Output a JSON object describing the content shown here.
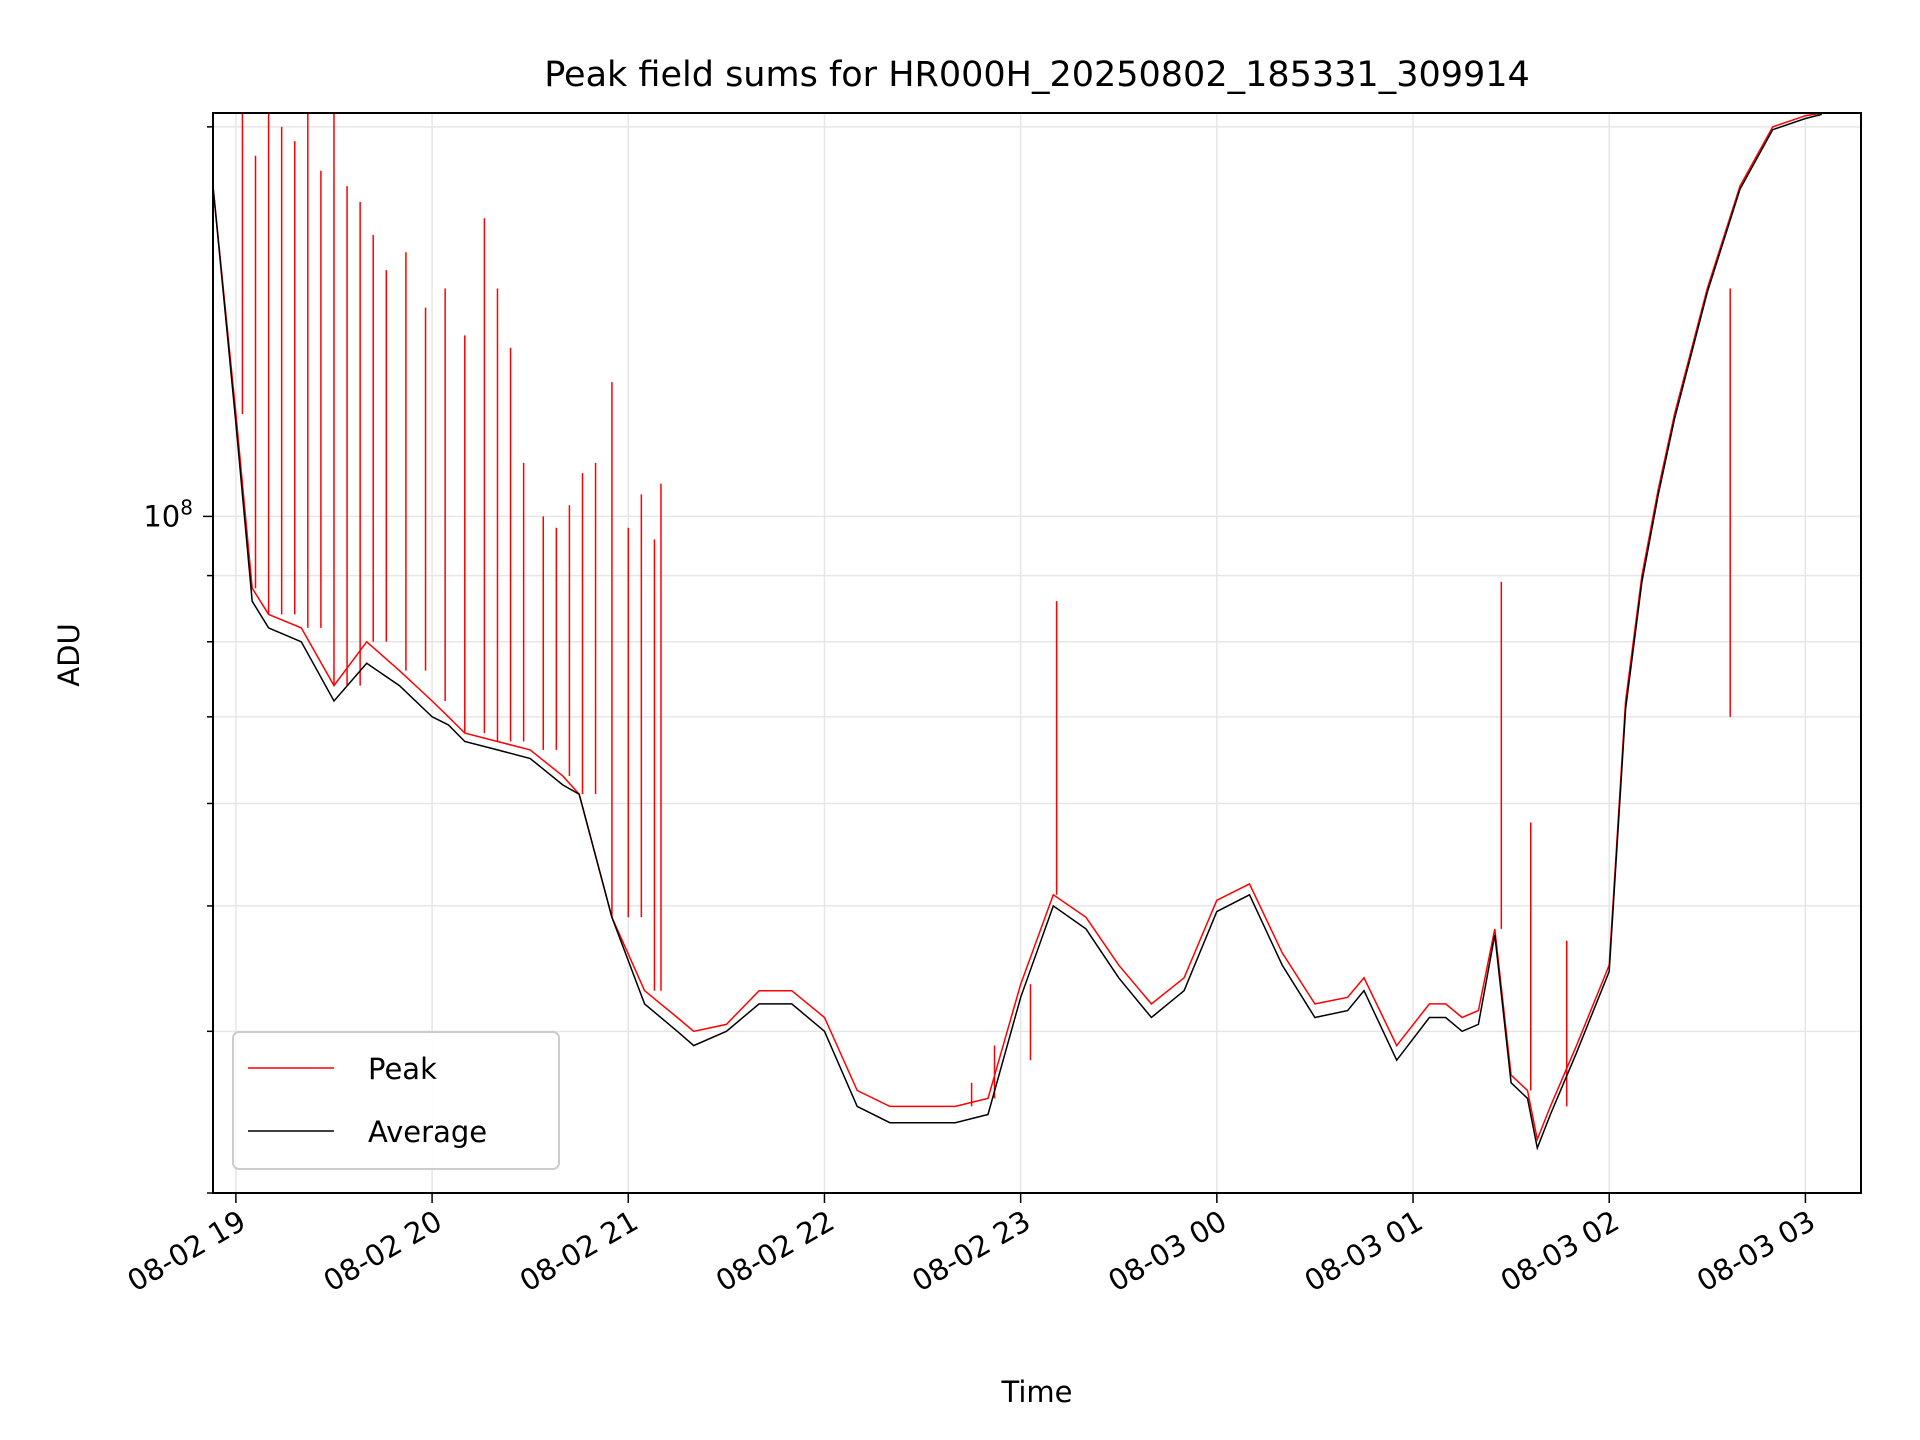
{
  "chart_data": {
    "type": "line",
    "title": "Peak field sums for HR000H_20250802_185331_309914",
    "xlabel": "Time",
    "ylabel": "ADU",
    "yscale": "log",
    "xlim": [
      "2025-08-02T18:53",
      "2025-08-03T03:17"
    ],
    "ylim": [
      30000000,
      205000000
    ],
    "x_ticks": [
      "08-02 19",
      "08-02 20",
      "08-02 21",
      "08-02 22",
      "08-02 23",
      "08-03 00",
      "08-03 01",
      "08-03 02",
      "08-03 03"
    ],
    "y_ticks": [
      {
        "value": 100000000,
        "base": "10",
        "exp": "8"
      }
    ],
    "grid": true,
    "legend_position": "lower-left",
    "series": [
      {
        "name": "Peak",
        "color": "#ff0000",
        "x": [
          "2025-08-02T18:53",
          "2025-08-02T19:00",
          "2025-08-02T19:05",
          "2025-08-02T19:10",
          "2025-08-02T19:20",
          "2025-08-02T19:30",
          "2025-08-02T19:40",
          "2025-08-02T19:50",
          "2025-08-02T20:00",
          "2025-08-02T20:05",
          "2025-08-02T20:10",
          "2025-08-02T20:20",
          "2025-08-02T20:30",
          "2025-08-02T20:40",
          "2025-08-02T20:45",
          "2025-08-02T20:55",
          "2025-08-02T21:05",
          "2025-08-02T21:15",
          "2025-08-02T21:20",
          "2025-08-02T21:30",
          "2025-08-02T21:40",
          "2025-08-02T21:50",
          "2025-08-02T22:00",
          "2025-08-02T22:10",
          "2025-08-02T22:20",
          "2025-08-02T22:30",
          "2025-08-02T22:40",
          "2025-08-02T22:50",
          "2025-08-02T23:00",
          "2025-08-02T23:10",
          "2025-08-02T23:20",
          "2025-08-02T23:30",
          "2025-08-02T23:40",
          "2025-08-02T23:50",
          "2025-08-03T00:00",
          "2025-08-03T00:10",
          "2025-08-03T00:20",
          "2025-08-03T00:30",
          "2025-08-03T00:40",
          "2025-08-03T00:45",
          "2025-08-03T00:55",
          "2025-08-03T01:05",
          "2025-08-03T01:10",
          "2025-08-03T01:15",
          "2025-08-03T01:20",
          "2025-08-03T01:25",
          "2025-08-03T01:30",
          "2025-08-03T01:35",
          "2025-08-03T01:38",
          "2025-08-03T01:42",
          "2025-08-03T01:50",
          "2025-08-03T02:00",
          "2025-08-03T02:05",
          "2025-08-03T02:10",
          "2025-08-03T02:15",
          "2025-08-03T02:20",
          "2025-08-03T02:30",
          "2025-08-03T02:40",
          "2025-08-03T02:50",
          "2025-08-03T03:00",
          "2025-08-03T03:05"
        ],
        "y": [
          180000000,
          120000000,
          88000000,
          84000000,
          82000000,
          74000000,
          80000000,
          76000000,
          72000000,
          70000000,
          68000000,
          67000000,
          66000000,
          63000000,
          61000000,
          49000000,
          43000000,
          41000000,
          40000000,
          40500000,
          43000000,
          43000000,
          41000000,
          36000000,
          35000000,
          35000000,
          35000000,
          35500000,
          43500000,
          51000000,
          49000000,
          45000000,
          42000000,
          44000000,
          50500000,
          52000000,
          46000000,
          42000000,
          42500000,
          44000000,
          39000000,
          42000000,
          42000000,
          41000000,
          41500000,
          48000000,
          37000000,
          36000000,
          33000000,
          35000000,
          39000000,
          45000000,
          72000000,
          90000000,
          105000000,
          120000000,
          150000000,
          180000000,
          200000000,
          204000000,
          205000000
        ],
        "spikes": [
          {
            "x": "2025-08-02T19:02",
            "y": 205000000
          },
          {
            "x": "2025-08-02T19:06",
            "y": 190000000
          },
          {
            "x": "2025-08-02T19:10",
            "y": 205000000
          },
          {
            "x": "2025-08-02T19:14",
            "y": 200000000
          },
          {
            "x": "2025-08-02T19:18",
            "y": 195000000
          },
          {
            "x": "2025-08-02T19:22",
            "y": 205000000
          },
          {
            "x": "2025-08-02T19:26",
            "y": 185000000
          },
          {
            "x": "2025-08-02T19:30",
            "y": 205000000
          },
          {
            "x": "2025-08-02T19:34",
            "y": 180000000
          },
          {
            "x": "2025-08-02T19:38",
            "y": 175000000
          },
          {
            "x": "2025-08-02T19:42",
            "y": 165000000
          },
          {
            "x": "2025-08-02T19:46",
            "y": 155000000
          },
          {
            "x": "2025-08-02T19:52",
            "y": 160000000
          },
          {
            "x": "2025-08-02T19:58",
            "y": 145000000
          },
          {
            "x": "2025-08-02T20:04",
            "y": 150000000
          },
          {
            "x": "2025-08-02T20:10",
            "y": 138000000
          },
          {
            "x": "2025-08-02T20:16",
            "y": 170000000
          },
          {
            "x": "2025-08-02T20:20",
            "y": 150000000
          },
          {
            "x": "2025-08-02T20:24",
            "y": 135000000
          },
          {
            "x": "2025-08-02T20:28",
            "y": 110000000
          },
          {
            "x": "2025-08-02T20:34",
            "y": 100000000
          },
          {
            "x": "2025-08-02T20:38",
            "y": 98000000
          },
          {
            "x": "2025-08-02T20:42",
            "y": 102000000
          },
          {
            "x": "2025-08-02T20:46",
            "y": 108000000
          },
          {
            "x": "2025-08-02T20:50",
            "y": 110000000
          },
          {
            "x": "2025-08-02T20:55",
            "y": 127000000
          },
          {
            "x": "2025-08-02T21:00",
            "y": 98000000
          },
          {
            "x": "2025-08-02T21:04",
            "y": 104000000
          },
          {
            "x": "2025-08-02T21:08",
            "y": 96000000
          },
          {
            "x": "2025-08-02T21:10",
            "y": 106000000
          },
          {
            "x": "2025-08-02T22:45",
            "y": 36500000
          },
          {
            "x": "2025-08-02T22:52",
            "y": 39000000
          },
          {
            "x": "2025-08-02T23:03",
            "y": 38000000
          },
          {
            "x": "2025-08-02T23:11",
            "y": 86000000
          },
          {
            "x": "2025-08-03T01:27",
            "y": 89000000
          },
          {
            "x": "2025-08-03T01:36",
            "y": 58000000
          },
          {
            "x": "2025-08-03T01:47",
            "y": 47000000
          },
          {
            "x": "2025-08-03T02:37",
            "y": 70000000
          }
        ]
      },
      {
        "name": "Average",
        "color": "#000000",
        "x": [
          "2025-08-02T18:53",
          "2025-08-02T19:00",
          "2025-08-02T19:05",
          "2025-08-02T19:10",
          "2025-08-02T19:20",
          "2025-08-02T19:30",
          "2025-08-02T19:40",
          "2025-08-02T19:50",
          "2025-08-02T20:00",
          "2025-08-02T20:05",
          "2025-08-02T20:10",
          "2025-08-02T20:20",
          "2025-08-02T20:30",
          "2025-08-02T20:40",
          "2025-08-02T20:45",
          "2025-08-02T20:55",
          "2025-08-02T21:05",
          "2025-08-02T21:15",
          "2025-08-02T21:20",
          "2025-08-02T21:30",
          "2025-08-02T21:40",
          "2025-08-02T21:50",
          "2025-08-02T22:00",
          "2025-08-02T22:10",
          "2025-08-02T22:20",
          "2025-08-02T22:30",
          "2025-08-02T22:40",
          "2025-08-02T22:50",
          "2025-08-02T23:00",
          "2025-08-02T23:10",
          "2025-08-02T23:20",
          "2025-08-02T23:30",
          "2025-08-02T23:40",
          "2025-08-02T23:50",
          "2025-08-03T00:00",
          "2025-08-03T00:10",
          "2025-08-03T00:20",
          "2025-08-03T00:30",
          "2025-08-03T00:40",
          "2025-08-03T00:45",
          "2025-08-03T00:55",
          "2025-08-03T01:05",
          "2025-08-03T01:10",
          "2025-08-03T01:15",
          "2025-08-03T01:20",
          "2025-08-03T01:25",
          "2025-08-03T01:30",
          "2025-08-03T01:35",
          "2025-08-03T01:38",
          "2025-08-03T01:42",
          "2025-08-03T01:50",
          "2025-08-03T02:00",
          "2025-08-03T02:05",
          "2025-08-03T02:10",
          "2025-08-03T02:15",
          "2025-08-03T02:20",
          "2025-08-03T02:30",
          "2025-08-03T02:40",
          "2025-08-03T02:50",
          "2025-08-03T03:00",
          "2025-08-03T03:05"
        ],
        "y": [
          180000000,
          118000000,
          86000000,
          82000000,
          80000000,
          72000000,
          77000000,
          74000000,
          70000000,
          69000000,
          67000000,
          66000000,
          65000000,
          62000000,
          61000000,
          49000000,
          42000000,
          40000000,
          39000000,
          40000000,
          42000000,
          42000000,
          40000000,
          35000000,
          34000000,
          34000000,
          34000000,
          34500000,
          42500000,
          50000000,
          48000000,
          44000000,
          41000000,
          43000000,
          49500000,
          51000000,
          45000000,
          41000000,
          41500000,
          43000000,
          38000000,
          41000000,
          41000000,
          40000000,
          40500000,
          47500000,
          36500000,
          35500000,
          32500000,
          34500000,
          38500000,
          44500000,
          71000000,
          89000000,
          104000000,
          119000000,
          149000000,
          179000000,
          199000000,
          203000000,
          204500000
        ]
      }
    ]
  }
}
